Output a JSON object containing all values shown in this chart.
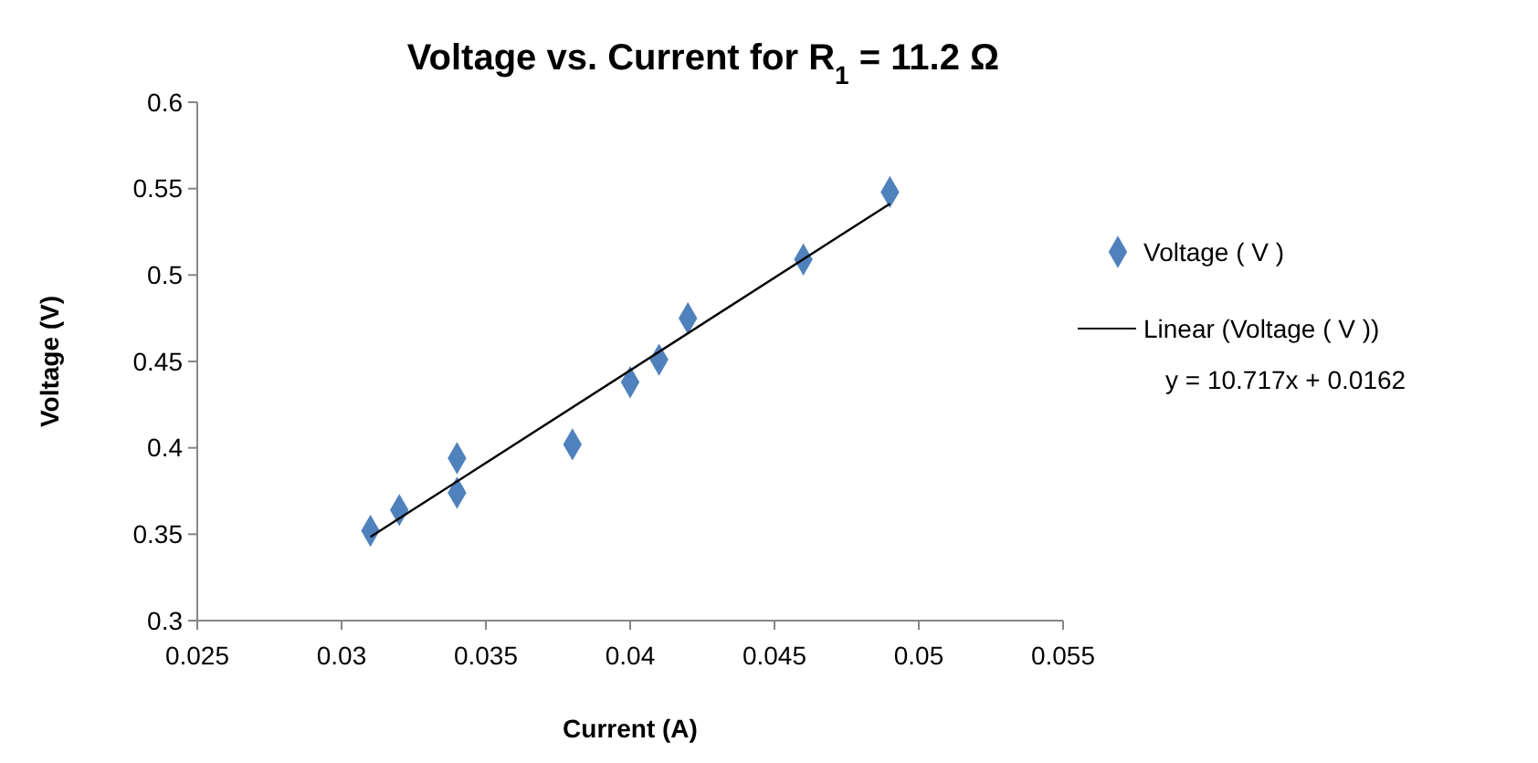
{
  "chart_data": {
    "type": "scatter",
    "title": "Voltage vs. Current for R$_{1}$ = 11.2 Ω",
    "xlabel": "Current (A)",
    "ylabel": "Voltage (V)",
    "xlim": [
      0.025,
      0.055
    ],
    "xticks": [
      0.025,
      0.03,
      0.035,
      0.04,
      0.045,
      0.05,
      0.055
    ],
    "ylim": [
      0.3,
      0.6
    ],
    "yticks": [
      0.3,
      0.35,
      0.4,
      0.45,
      0.5,
      0.55,
      0.6
    ],
    "grid": false,
    "legend": "right",
    "marker": "diamond",
    "series": [
      {
        "name": "Voltage ( V )",
        "color": "#4f81bd",
        "x": [
          0.031,
          0.032,
          0.034,
          0.034,
          0.038,
          0.04,
          0.041,
          0.042,
          0.046,
          0.049
        ],
        "values": [
          0.352,
          0.364,
          0.394,
          0.374,
          0.402,
          0.438,
          0.451,
          0.475,
          0.509,
          0.548
        ]
      },
      {
        "name": "Linear (Voltage ( V ))",
        "type": "line",
        "color": "#000000",
        "marker": "none",
        "line_style": "solid",
        "x": [
          0.031,
          0.049
        ],
        "values": [
          0.3484,
          0.5413
        ]
      }
    ],
    "annotations": [
      "y = 10.717x + 0.0162"
    ]
  }
}
